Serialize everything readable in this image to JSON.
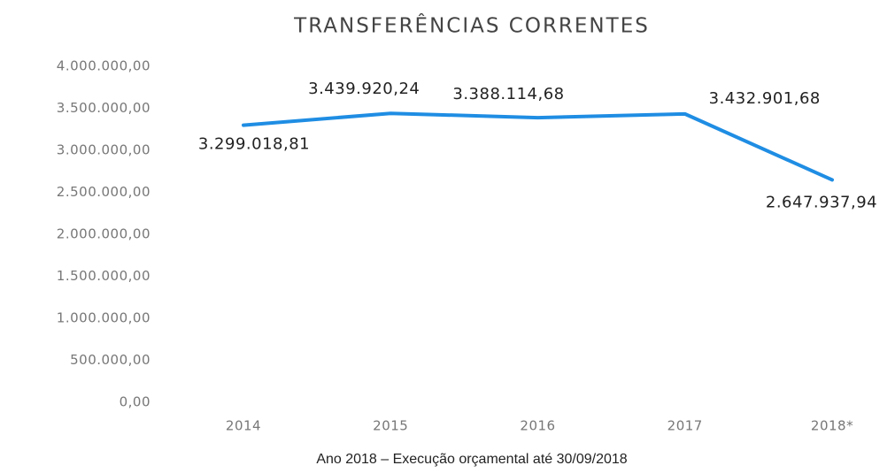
{
  "chart_data": {
    "type": "line",
    "title": "TRANSFERÊNCIAS CORRENTES",
    "categories": [
      "2014",
      "2015",
      "2016",
      "2017",
      "2018*"
    ],
    "series": [
      {
        "name": "Transferências correntes",
        "color": "#1f8de3",
        "values": [
          3299018.81,
          3439920.24,
          3388114.68,
          3432901.68,
          2647937.94
        ],
        "value_labels": [
          "3.299.018,81",
          "3.439.920,24",
          "3.388.114,68",
          "3.432.901,68",
          "2.647.937,94"
        ]
      }
    ],
    "ylim": [
      0,
      4000000
    ],
    "yticks": [
      {
        "value": 0,
        "label": "0,00"
      },
      {
        "value": 500000,
        "label": "500.000,00"
      },
      {
        "value": 1000000,
        "label": "1.000.000,00"
      },
      {
        "value": 1500000,
        "label": "1.500.000,00"
      },
      {
        "value": 2000000,
        "label": "2.000.000,00"
      },
      {
        "value": 2500000,
        "label": "2.500.000,00"
      },
      {
        "value": 3000000,
        "label": "3.000.000,00"
      },
      {
        "value": 3500000,
        "label": "3.500.000,00"
      },
      {
        "value": 4000000,
        "label": "4.000.000,00"
      }
    ],
    "grid": false,
    "annotation": "Ano 2018 – Execução orçamental até 30/09/2018"
  }
}
